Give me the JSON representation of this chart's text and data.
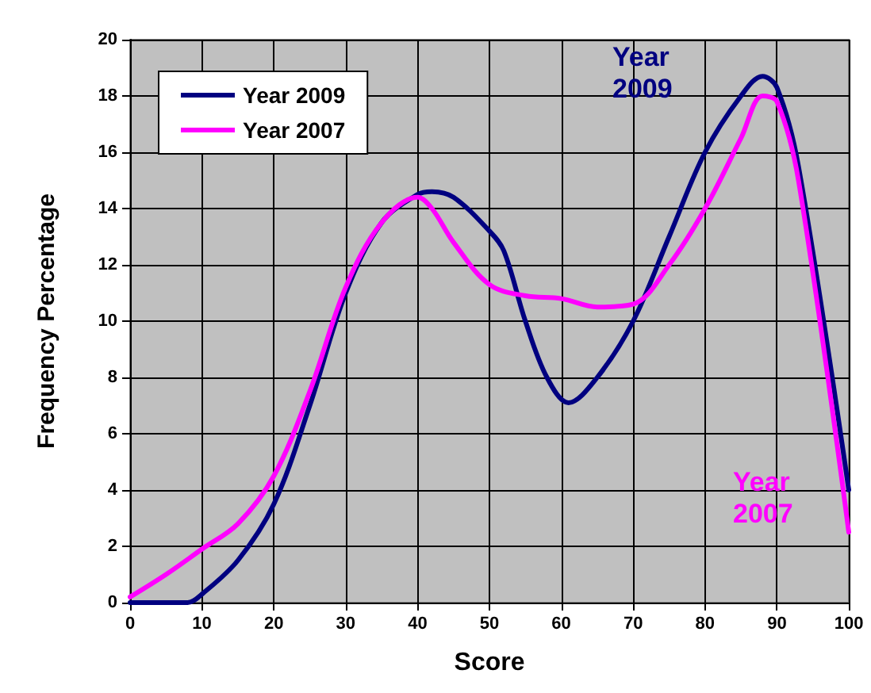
{
  "chart_data": {
    "type": "line",
    "xlabel": "Score",
    "ylabel": "Frequency Percentage",
    "xlim": [
      0,
      100
    ],
    "xticks": [
      0,
      10,
      20,
      30,
      40,
      50,
      60,
      70,
      80,
      90,
      100
    ],
    "ylim": [
      0,
      20
    ],
    "yticks": [
      0,
      2,
      4,
      6,
      8,
      10,
      12,
      14,
      16,
      18,
      20
    ],
    "grid": true,
    "legend": "top left",
    "marker": "none",
    "line_style": "solid",
    "series": [
      {
        "name": "Year 2009",
        "color": "#000080",
        "x": [
          0,
          5,
          8,
          10,
          15,
          20,
          25,
          30,
          35,
          40,
          42,
          45,
          50,
          52,
          55,
          58,
          61,
          65,
          70,
          75,
          80,
          85,
          88,
          90,
          93,
          100
        ],
        "values": [
          0,
          0,
          0,
          0.3,
          1.5,
          3.5,
          7,
          11,
          13.5,
          14.5,
          14.6,
          14.4,
          13.2,
          12.5,
          10,
          8,
          7.1,
          8,
          10,
          13,
          16,
          18,
          18.7,
          18.3,
          15.5,
          4
        ]
      },
      {
        "name": "Year 2007",
        "color": "#ff00ff",
        "x": [
          0,
          5,
          10,
          15,
          20,
          25,
          30,
          35,
          40,
          42,
          45,
          50,
          55,
          60,
          65,
          70,
          75,
          80,
          85,
          88,
          90,
          93,
          100
        ],
        "values": [
          0.2,
          1,
          1.9,
          2.8,
          4.5,
          7.5,
          11.2,
          13.5,
          14.4,
          14,
          12.8,
          11.3,
          10.9,
          10.8,
          10.5,
          10.6,
          12,
          14,
          16.5,
          18,
          17.8,
          15,
          2.5
        ]
      }
    ],
    "annotations": [
      "Year 2009",
      "Year 2007"
    ]
  }
}
